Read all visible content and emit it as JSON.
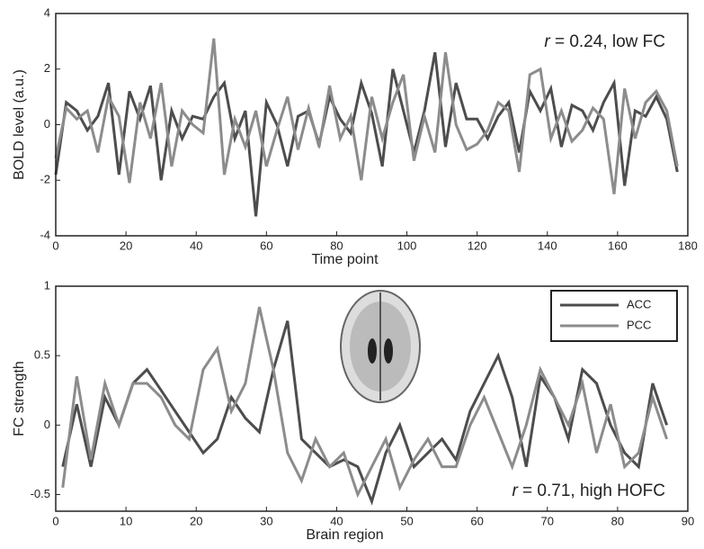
{
  "chart_data": [
    {
      "type": "line",
      "x_label": "Time point",
      "y_label": "BOLD level (a.u.)",
      "annotation": [
        "r",
        " = 0.24, low FC"
      ],
      "xlim": [
        0,
        180
      ],
      "ylim": [
        -4,
        4
      ],
      "xticks": [
        0,
        20,
        40,
        60,
        80,
        100,
        120,
        140,
        160,
        180
      ],
      "yticks": [
        -4,
        -2,
        0,
        2,
        4
      ],
      "x": [
        0,
        3,
        6,
        9,
        12,
        15,
        18,
        21,
        24,
        27,
        30,
        33,
        36,
        39,
        42,
        45,
        48,
        51,
        54,
        57,
        60,
        63,
        66,
        69,
        72,
        75,
        78,
        81,
        84,
        87,
        90,
        93,
        96,
        99,
        102,
        105,
        108,
        111,
        114,
        117,
        120,
        123,
        126,
        129,
        132,
        135,
        138,
        141,
        144,
        147,
        150,
        153,
        156,
        159,
        162,
        165,
        168,
        171,
        174,
        177
      ],
      "series": [
        {
          "color": "#4d4d4d",
          "values": [
            -1.8,
            0.8,
            0.5,
            -0.2,
            0.3,
            1.5,
            -1.8,
            1.2,
            0.2,
            1.4,
            -2.0,
            0.5,
            -0.5,
            0.3,
            0.2,
            1.0,
            1.5,
            -0.5,
            0.5,
            -3.3,
            0.8,
            0.0,
            -1.5,
            0.3,
            0.5,
            -0.7,
            1.0,
            0.2,
            -0.3,
            1.5,
            0.4,
            -1.5,
            2.0,
            0.5,
            -1.0,
            0.5,
            2.6,
            -0.8,
            1.5,
            0.2,
            0.2,
            -0.5,
            0.3,
            0.8,
            -1.0,
            1.2,
            0.5,
            1.3,
            -0.8,
            0.7,
            0.5,
            -0.2,
            0.8,
            1.5,
            -2.2,
            0.5,
            0.3,
            1.0,
            0.2,
            -1.7
          ]
        },
        {
          "color": "#8c8c8c",
          "values": [
            -1.2,
            0.6,
            0.2,
            0.5,
            -1.0,
            1.0,
            0.3,
            -2.1,
            0.8,
            -0.5,
            1.5,
            -1.5,
            0.5,
            0.0,
            -0.3,
            3.1,
            -1.8,
            0.2,
            -0.8,
            0.5,
            -1.5,
            -0.2,
            1.0,
            -0.9,
            0.6,
            -0.8,
            1.4,
            -0.5,
            0.3,
            -2.0,
            1.0,
            -0.5,
            0.8,
            1.8,
            -1.3,
            0.3,
            -1.0,
            2.6,
            0.0,
            -0.9,
            -0.7,
            -0.2,
            0.8,
            0.5,
            -1.7,
            1.8,
            2.0,
            -0.5,
            0.5,
            -0.6,
            -0.2,
            0.6,
            0.2,
            -2.5,
            1.3,
            -0.5,
            0.8,
            1.2,
            0.5,
            -1.5
          ]
        }
      ]
    },
    {
      "type": "line",
      "x_label": "Brain region",
      "y_label": "FC strength",
      "annotation": [
        "r",
        " = 0.71, high HOFC"
      ],
      "xlim": [
        0,
        90
      ],
      "ylim": [
        -0.62,
        1
      ],
      "xticks": [
        0,
        10,
        20,
        30,
        40,
        50,
        60,
        70,
        80,
        90
      ],
      "yticks": [
        -0.5,
        0,
        0.5,
        1
      ],
      "legend": "upper right",
      "x": [
        1,
        3,
        5,
        7,
        9,
        11,
        13,
        15,
        17,
        19,
        21,
        23,
        25,
        27,
        29,
        31,
        33,
        35,
        37,
        39,
        41,
        43,
        45,
        47,
        49,
        51,
        53,
        55,
        57,
        59,
        61,
        63,
        65,
        67,
        69,
        71,
        73,
        75,
        77,
        79,
        81,
        83,
        85,
        87
      ],
      "series": [
        {
          "name": "ACC",
          "color": "#4d4d4d",
          "values": [
            -0.3,
            0.15,
            -0.3,
            0.2,
            0.0,
            0.3,
            0.4,
            0.25,
            0.1,
            -0.05,
            -0.2,
            -0.1,
            0.2,
            0.05,
            -0.05,
            0.4,
            0.75,
            -0.1,
            -0.2,
            -0.3,
            -0.25,
            -0.3,
            -0.55,
            -0.2,
            0.0,
            -0.3,
            -0.2,
            -0.1,
            -0.25,
            0.1,
            0.3,
            0.5,
            0.2,
            -0.3,
            0.35,
            0.2,
            -0.1,
            0.4,
            0.3,
            0.0,
            -0.2,
            -0.3,
            0.3,
            0.0
          ]
        },
        {
          "name": "PCC",
          "color": "#8c8c8c",
          "values": [
            -0.45,
            0.35,
            -0.25,
            0.3,
            0.0,
            0.3,
            0.3,
            0.2,
            0.0,
            -0.1,
            0.4,
            0.55,
            0.1,
            0.3,
            0.85,
            0.4,
            -0.2,
            -0.4,
            -0.1,
            -0.3,
            -0.2,
            -0.5,
            -0.3,
            -0.1,
            -0.45,
            -0.25,
            -0.1,
            -0.3,
            -0.3,
            0.0,
            0.2,
            -0.05,
            -0.3,
            0.0,
            0.4,
            0.2,
            0.0,
            0.3,
            -0.2,
            0.15,
            -0.3,
            -0.2,
            0.2,
            -0.1
          ]
        }
      ]
    }
  ]
}
